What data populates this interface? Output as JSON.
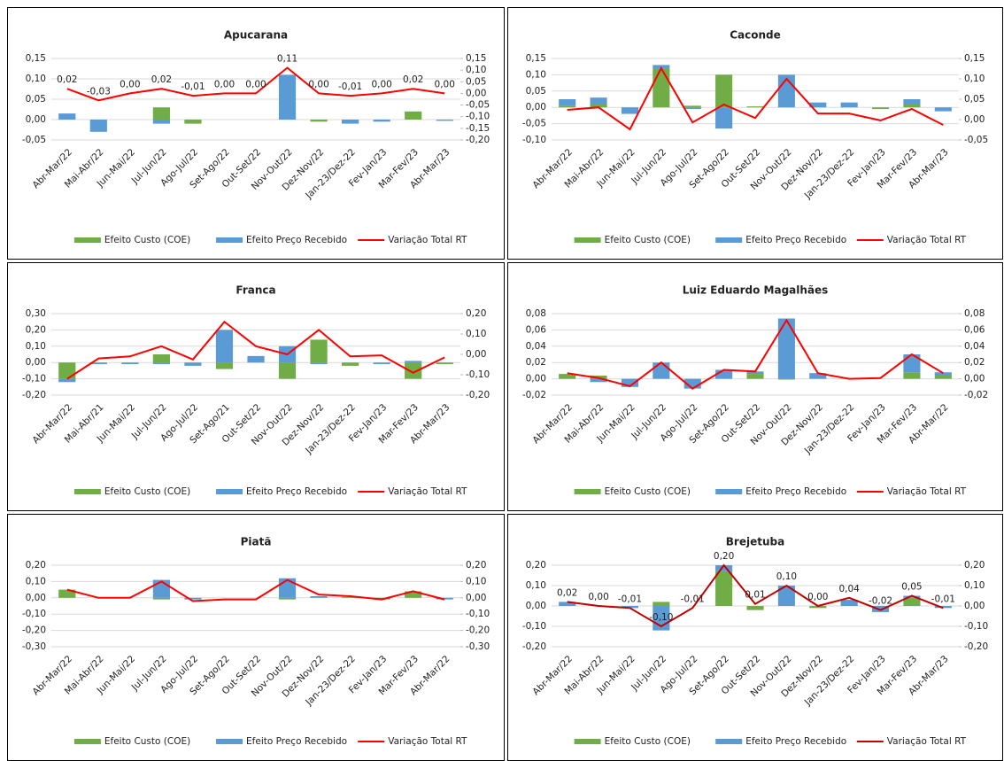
{
  "chart_data": [
    {
      "type": "combo",
      "title": "Apucarana",
      "grid": true,
      "categories": [
        "Abr-Mar/22",
        "Mai-Abr/22",
        "Jun-Mai/22",
        "Jul-Jun/22",
        "Ago-Jul/22",
        "Set-Ago/22",
        "Out-Set/22",
        "Nov-Out/22",
        "Dez-Nov/22",
        "Jan-23/Dez-22",
        "Fev-Jan/23",
        "Mar-Fev/23",
        "Abr-Mar/23"
      ],
      "ylim": [
        -0.05,
        0.15
      ],
      "yticks": [
        {
          "value": -0.05,
          "label": "-0,05"
        },
        {
          "value": 0,
          "label": "0,00"
        },
        {
          "value": 0.05,
          "label": "0,05"
        },
        {
          "value": 0.1,
          "label": "0,10"
        },
        {
          "value": 0.15,
          "label": "0,15"
        }
      ],
      "y2lim": [
        -0.2,
        0.15
      ],
      "y2ticks": [
        {
          "value": -0.2,
          "label": "-0,20"
        },
        {
          "value": -0.15,
          "label": "-0,15"
        },
        {
          "value": -0.1,
          "label": "-0,10"
        },
        {
          "value": -0.05,
          "label": "-0,05"
        },
        {
          "value": 0,
          "label": "0,00"
        },
        {
          "value": 0.05,
          "label": "0,05"
        },
        {
          "value": 0.1,
          "label": "0,10"
        },
        {
          "value": 0.15,
          "label": "0,15"
        }
      ],
      "series": [
        {
          "name": "Efeito Custo (COE)",
          "type": "bar",
          "color": "#70ad47",
          "values": [
            0,
            0,
            0,
            0.03,
            -0.01,
            0,
            0,
            0,
            -0.005,
            0,
            0,
            0.02,
            0
          ]
        },
        {
          "name": "Efeito Preço Recebido",
          "type": "bar",
          "color": "#5b9bd5",
          "values": [
            0.015,
            -0.03,
            0,
            -0.01,
            0,
            0,
            0,
            0.11,
            0,
            -0.01,
            -0.005,
            0,
            -0.003
          ]
        },
        {
          "name": "Variação Total RT",
          "type": "line",
          "axis": "y2",
          "color": "#ff0000",
          "values": [
            0.02,
            -0.03,
            0,
            0.02,
            -0.01,
            0,
            0,
            0.11,
            0,
            -0.01,
            0,
            0.02,
            0
          ],
          "value_labels": [
            "0,02",
            "-0,03",
            "0,00",
            "0,02",
            "-0,01",
            "0,00",
            "0,00",
            "0,11",
            "0,00",
            "-0,01",
            "0,00",
            "0,02",
            "0,00"
          ]
        }
      ]
    },
    {
      "type": "combo",
      "title": "Caconde",
      "grid": true,
      "categories": [
        "Abr-Mar/22",
        "Mai-Abr/22",
        "Jun-Mai/22",
        "Jul-Jun/22",
        "Ago-Jul/22",
        "Set-Ago/22",
        "Out-Set/22",
        "Nov-Out/22",
        "Dez-Nov/22",
        "Jan-23/Dez-22",
        "Fev-Jan/23",
        "Mar-Fev/23",
        "Abr-Mar/23"
      ],
      "ylim": [
        -0.1,
        0.15
      ],
      "yticks": [
        {
          "value": -0.1,
          "label": "-0,10"
        },
        {
          "value": -0.05,
          "label": "-0,05"
        },
        {
          "value": 0,
          "label": "0,00"
        },
        {
          "value": 0.05,
          "label": "0,05"
        },
        {
          "value": 0.1,
          "label": "0,10"
        },
        {
          "value": 0.15,
          "label": "0,15"
        }
      ],
      "y2lim": [
        -0.05,
        0.15
      ],
      "y2ticks": [
        {
          "value": -0.05,
          "label": "-0,05"
        },
        {
          "value": 0,
          "label": "0,00"
        },
        {
          "value": 0.05,
          "label": "0,05"
        },
        {
          "value": 0.1,
          "label": "0,10"
        },
        {
          "value": 0.15,
          "label": "0,15"
        }
      ],
      "series": [
        {
          "name": "Efeito Custo (COE)",
          "type": "bar",
          "color": "#70ad47",
          "values": [
            0.005,
            0.01,
            0,
            0.12,
            0.005,
            0.1,
            0.003,
            0,
            0,
            0,
            -0.005,
            0.01,
            0
          ]
        },
        {
          "name": "Efeito Preço Recebido",
          "type": "bar",
          "color": "#5b9bd5",
          "values": [
            0.02,
            0.02,
            -0.02,
            0.01,
            -0.005,
            -0.065,
            0,
            0.1,
            0.015,
            0.015,
            0,
            0.015,
            -0.012
          ]
        },
        {
          "name": "Variação Total RT",
          "type": "line",
          "axis": "y2",
          "color": "#ff0000",
          "values": [
            0.024,
            0.03,
            -0.024,
            0.126,
            -0.007,
            0.037,
            0.004,
            0.1,
            0.015,
            0.015,
            -0.002,
            0.026,
            -0.013
          ]
        }
      ]
    },
    {
      "type": "combo",
      "title": "Franca",
      "grid": true,
      "categories": [
        "Abr-Mar/22",
        "Mai-Abr/21",
        "Jun-Mai/22",
        "Jul-Jun/22",
        "Ago-Jul/22",
        "Set-Ago/21",
        "Out-Set/22",
        "Nov-Out/22",
        "Dez-Nov/22",
        "Jan-23/Dez-22",
        "Fev-Jan/23",
        "Mar-Fev/23",
        "Abr-Mar/23"
      ],
      "ylim": [
        -0.2,
        0.3
      ],
      "yticks": [
        {
          "value": -0.2,
          "label": "-0,20"
        },
        {
          "value": -0.1,
          "label": "-0,10"
        },
        {
          "value": 0,
          "label": "0,00"
        },
        {
          "value": 0.1,
          "label": "0,10"
        },
        {
          "value": 0.2,
          "label": "0,20"
        },
        {
          "value": 0.3,
          "label": "0,30"
        }
      ],
      "y2lim": [
        -0.2,
        0.2
      ],
      "y2ticks": [
        {
          "value": -0.2,
          "label": "-0,20"
        },
        {
          "value": -0.1,
          "label": "-0,10"
        },
        {
          "value": 0,
          "label": "0,00"
        },
        {
          "value": 0.1,
          "label": "0,10"
        },
        {
          "value": 0.2,
          "label": "0,20"
        }
      ],
      "series": [
        {
          "name": "Efeito Custo (COE)",
          "type": "bar",
          "color": "#70ad47",
          "values": [
            -0.1,
            0,
            0,
            0.05,
            0,
            -0.04,
            0,
            -0.1,
            0.14,
            -0.02,
            0,
            -0.1,
            -0.01
          ]
        },
        {
          "name": "Efeito Preço Recebido",
          "type": "bar",
          "color": "#5b9bd5",
          "values": [
            -0.02,
            -0.01,
            -0.01,
            -0.01,
            -0.02,
            0.2,
            0.04,
            0.1,
            -0.01,
            0,
            -0.01,
            0.01,
            0
          ]
        },
        {
          "name": "Variação Total RT",
          "type": "line",
          "axis": "y2",
          "color": "#ff0000",
          "values": [
            -0.12,
            -0.02,
            -0.01,
            0.04,
            -0.025,
            0.16,
            0.04,
            0,
            0.12,
            -0.01,
            -0.005,
            -0.09,
            -0.015
          ]
        }
      ]
    },
    {
      "type": "combo",
      "title": "Luiz Eduardo Magalhães",
      "grid": true,
      "categories": [
        "Abr-Mar/22",
        "Mai-Abr/22",
        "Jun-Mai/22",
        "Jul-Jun/22",
        "Ago-Jul/22",
        "Set-Ago/22",
        "Out-Set/22",
        "Nov-Out/22",
        "Dez-Nov/22",
        "Jan-23/Dez-22",
        "Fev-Jan/23",
        "Mar-Fev/23",
        "Abr-Mar/22"
      ],
      "ylim": [
        -0.02,
        0.08
      ],
      "yticks": [
        {
          "value": -0.02,
          "label": "-0,02"
        },
        {
          "value": 0,
          "label": "0,00"
        },
        {
          "value": 0.02,
          "label": "0,02"
        },
        {
          "value": 0.04,
          "label": "0,04"
        },
        {
          "value": 0.06,
          "label": "0,06"
        },
        {
          "value": 0.08,
          "label": "0,08"
        }
      ],
      "y2lim": [
        -0.02,
        0.08
      ],
      "y2ticks": [
        {
          "value": -0.02,
          "label": "-0,02"
        },
        {
          "value": 0,
          "label": "0,00"
        },
        {
          "value": 0.02,
          "label": "0,02"
        },
        {
          "value": 0.04,
          "label": "0,04"
        },
        {
          "value": 0.06,
          "label": "0,06"
        },
        {
          "value": 0.08,
          "label": "0,08"
        }
      ],
      "series": [
        {
          "name": "Efeito Custo (COE)",
          "type": "bar",
          "color": "#70ad47",
          "values": [
            0.006,
            0.004,
            0,
            0,
            0,
            0,
            0.006,
            -0.001,
            0,
            0,
            0,
            0.008,
            0.005
          ]
        },
        {
          "name": "Efeito Preço Recebido",
          "type": "bar",
          "color": "#5b9bd5",
          "values": [
            0,
            -0.004,
            -0.01,
            0.02,
            -0.012,
            0.011,
            0.003,
            0.074,
            0.007,
            0,
            0,
            0.022,
            0.003
          ]
        },
        {
          "name": "Variação Total RT",
          "type": "line",
          "axis": "y2",
          "color": "#ff0000",
          "values": [
            0.007,
            0.001,
            -0.009,
            0.02,
            -0.012,
            0.011,
            0.009,
            0.072,
            0.007,
            0,
            0.001,
            0.03,
            0.007
          ]
        }
      ]
    },
    {
      "type": "combo",
      "title": "Piatã",
      "grid": true,
      "categories": [
        "Abr-Mar/22",
        "Mai-Abr/22",
        "Jun-Mai/22",
        "Jul-Jun/22",
        "Ago-Jul/22",
        "Set-Ago/22",
        "Out-Set/22",
        "Nov-Out/22",
        "Dez-Nov/22",
        "Jan-23/Dez-22",
        "Fev-Jan/23",
        "Mar-Fev/23",
        "Abr-Mar/22"
      ],
      "ylim": [
        -0.3,
        0.2
      ],
      "yticks": [
        {
          "value": -0.3,
          "label": "-0,30"
        },
        {
          "value": -0.2,
          "label": "-0,20"
        },
        {
          "value": -0.1,
          "label": "-0,10"
        },
        {
          "value": 0,
          "label": "0,00"
        },
        {
          "value": 0.1,
          "label": "0,10"
        },
        {
          "value": 0.2,
          "label": "0,20"
        }
      ],
      "y2lim": [
        -0.3,
        0.2
      ],
      "y2ticks": [
        {
          "value": -0.3,
          "label": "-0,30"
        },
        {
          "value": -0.2,
          "label": "-0,20"
        },
        {
          "value": -0.1,
          "label": "-0,10"
        },
        {
          "value": 0,
          "label": "0,00"
        },
        {
          "value": 0.1,
          "label": "0,10"
        },
        {
          "value": 0.2,
          "label": "0,20"
        }
      ],
      "series": [
        {
          "name": "Efeito Custo (COE)",
          "type": "bar",
          "color": "#70ad47",
          "values": [
            0.05,
            0,
            0,
            -0.01,
            0,
            0,
            0,
            -0.01,
            0,
            0.005,
            -0.01,
            0.04,
            0
          ]
        },
        {
          "name": "Efeito Preço Recebido",
          "type": "bar",
          "color": "#5b9bd5",
          "values": [
            0,
            0,
            0,
            0.11,
            -0.01,
            0,
            0,
            0.12,
            0.01,
            0,
            0,
            0,
            -0.01
          ]
        },
        {
          "name": "Variação Total RT",
          "type": "line",
          "axis": "y2",
          "color": "#ff0000",
          "values": [
            0.05,
            0,
            0,
            0.1,
            -0.02,
            -0.01,
            -0.01,
            0.11,
            0.02,
            0.01,
            -0.01,
            0.04,
            -0.01
          ]
        }
      ]
    },
    {
      "type": "combo",
      "title": "Brejetuba",
      "grid": true,
      "categories": [
        "Abr-Mar/22",
        "Mai-Abr/22",
        "Jun-Mai/22",
        "Jul-Jun/22",
        "Ago-Jul/22",
        "Set-Ago/22",
        "Out-Set/22",
        "Nov-Out/22",
        "Dez-Nov/22",
        "Jan-23/Dez-22",
        "Fev-Jan/23",
        "Mar-Fev/23",
        "Abr-Mar/23"
      ],
      "ylim": [
        -0.2,
        0.2
      ],
      "yticks": [
        {
          "value": -0.2,
          "label": "-0,20"
        },
        {
          "value": -0.1,
          "label": "-0,10"
        },
        {
          "value": 0,
          "label": "0,00"
        },
        {
          "value": 0.1,
          "label": "0,10"
        },
        {
          "value": 0.2,
          "label": "0,20"
        }
      ],
      "y2lim": [
        -0.2,
        0.2
      ],
      "y2ticks": [
        {
          "value": -0.2,
          "label": "-0,20"
        },
        {
          "value": -0.1,
          "label": "-0,10"
        },
        {
          "value": 0,
          "label": "0,00"
        },
        {
          "value": 0.1,
          "label": "0,10"
        },
        {
          "value": 0.2,
          "label": "0,20"
        }
      ],
      "series": [
        {
          "name": "Efeito Custo (COE)",
          "type": "bar",
          "color": "#70ad47",
          "values": [
            0,
            0,
            0,
            0.02,
            0,
            0.17,
            -0.02,
            0,
            -0.01,
            0,
            0,
            0.04,
            0
          ]
        },
        {
          "name": "Efeito Preço Recebido",
          "type": "bar",
          "color": "#5b9bd5",
          "values": [
            0.02,
            0,
            -0.01,
            -0.12,
            0,
            0.03,
            0,
            0.1,
            0,
            0.03,
            -0.03,
            0.01,
            -0.01
          ]
        },
        {
          "name": "Variação Total RT",
          "type": "line",
          "axis": "y2",
          "color": "#c00000",
          "values": [
            0.02,
            0,
            -0.01,
            -0.1,
            -0.01,
            0.2,
            0.01,
            0.1,
            0,
            0.04,
            -0.02,
            0.05,
            -0.01
          ],
          "value_labels": [
            "0,02",
            "0,00",
            "-0,01",
            "-0,10",
            "-0,01",
            "0,20",
            "0,01",
            "0,10",
            "0,00",
            "0,04",
            "-0,02",
            "0,05",
            "-0,01"
          ]
        }
      ]
    }
  ]
}
